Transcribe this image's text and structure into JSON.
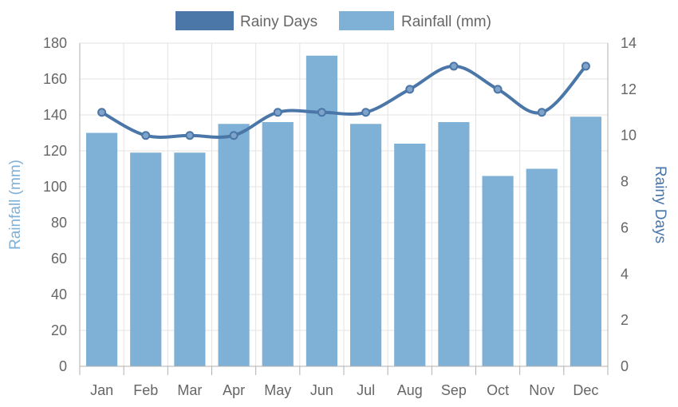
{
  "chart_data": {
    "type": "bar+line",
    "categories": [
      "Jan",
      "Feb",
      "Mar",
      "Apr",
      "May",
      "Jun",
      "Jul",
      "Aug",
      "Sep",
      "Oct",
      "Nov",
      "Dec"
    ],
    "series": [
      {
        "name": "Rainy Days",
        "type": "line",
        "axis": "right",
        "color": "#4a76a8",
        "values": [
          11,
          10,
          10,
          10,
          11,
          11,
          11,
          12,
          13,
          12,
          11,
          13
        ]
      },
      {
        "name": "Rainfall (mm)",
        "type": "bar",
        "axis": "left",
        "color": "#7fb0d5",
        "values": [
          130,
          119,
          119,
          135,
          136,
          173,
          135,
          124,
          136,
          106,
          110,
          139
        ]
      }
    ],
    "y_left": {
      "label": "Rainfall (mm)",
      "min": 0,
      "max": 180,
      "step": 20,
      "ticks": [
        "0",
        "20",
        "40",
        "60",
        "80",
        "100",
        "120",
        "140",
        "160",
        "180"
      ],
      "color": "#7fb0d5"
    },
    "y_right": {
      "label": "Rainy Days",
      "min": 0,
      "max": 14,
      "step": 2,
      "ticks": [
        "0",
        "2",
        "4",
        "6",
        "8",
        "10",
        "12",
        "14"
      ],
      "color": "#4a76a8"
    },
    "grid": true,
    "legend": "top-center"
  }
}
